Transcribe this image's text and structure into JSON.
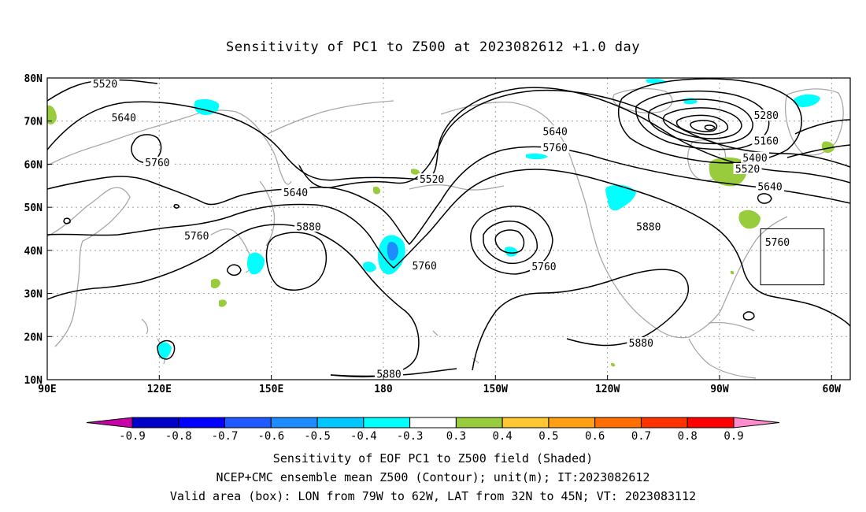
{
  "title": "Sensitivity of PC1 to Z500 at 2023082612 +1.0 day",
  "map": {
    "lat_range": [
      10,
      80
    ],
    "lon_range": [
      90,
      305
    ],
    "lat_ticks": [
      {
        "value": 80,
        "label": "80N"
      },
      {
        "value": 70,
        "label": "70N"
      },
      {
        "value": 60,
        "label": "60N"
      },
      {
        "value": 50,
        "label": "50N"
      },
      {
        "value": 40,
        "label": "40N"
      },
      {
        "value": 30,
        "label": "30N"
      },
      {
        "value": 20,
        "label": "20N"
      },
      {
        "value": 10,
        "label": "10N"
      }
    ],
    "lon_ticks": [
      {
        "value": 90,
        "label": "90E"
      },
      {
        "value": 120,
        "label": "120E"
      },
      {
        "value": 150,
        "label": "150E"
      },
      {
        "value": 180,
        "label": "180"
      },
      {
        "value": 210,
        "label": "150W"
      },
      {
        "value": 240,
        "label": "120W"
      },
      {
        "value": 270,
        "label": "90W"
      },
      {
        "value": 300,
        "label": "60W"
      }
    ],
    "valid_box": {
      "lon_min": 281,
      "lon_max": 298,
      "lat_min": 32,
      "lat_max": 45
    },
    "contour_labels": [
      {
        "text": "5520",
        "lon": 105.5,
        "lat": 78.5
      },
      {
        "text": "5640",
        "lon": 110.5,
        "lat": 70.7
      },
      {
        "text": "5760",
        "lon": 119.5,
        "lat": 60.3
      },
      {
        "text": "5640",
        "lon": 156.5,
        "lat": 53.3
      },
      {
        "text": "5760",
        "lon": 130,
        "lat": 43.3
      },
      {
        "text": "5880",
        "lon": 160,
        "lat": 45.4
      },
      {
        "text": "5520",
        "lon": 193,
        "lat": 56.4
      },
      {
        "text": "5760",
        "lon": 191,
        "lat": 36.3
      },
      {
        "text": "5640",
        "lon": 226,
        "lat": 67.5
      },
      {
        "text": "5760",
        "lon": 226,
        "lat": 63.7
      },
      {
        "text": "5760",
        "lon": 223,
        "lat": 36.1
      },
      {
        "text": "5880",
        "lon": 251,
        "lat": 45.4
      },
      {
        "text": "5880",
        "lon": 249,
        "lat": 18.4
      },
      {
        "text": "5880",
        "lon": 181.5,
        "lat": 11.2
      },
      {
        "text": "5280",
        "lon": 282.5,
        "lat": 71.2
      },
      {
        "text": "5160",
        "lon": 282.5,
        "lat": 65.3
      },
      {
        "text": "5400",
        "lon": 279.5,
        "lat": 61.4
      },
      {
        "text": "5520",
        "lon": 277.5,
        "lat": 58.8
      },
      {
        "text": "5640",
        "lon": 283.5,
        "lat": 54.7
      },
      {
        "text": "5760",
        "lon": 285.5,
        "lat": 41.8
      }
    ]
  },
  "colorbar": {
    "colors": [
      "#c800a8",
      "#0000c8",
      "#0000ff",
      "#1e5aff",
      "#1e8cff",
      "#00c8ff",
      "#00ffff",
      "#ffffff",
      "#98cc3c",
      "#ffc832",
      "#ffa014",
      "#ff6e00",
      "#ff3200",
      "#ff0000",
      "#ff8ccd"
    ],
    "labels": [
      "-0.9",
      "-0.8",
      "-0.7",
      "-0.6",
      "-0.5",
      "-0.4",
      "-0.3",
      "0.3",
      "0.4",
      "0.5",
      "0.6",
      "0.7",
      "0.8",
      "0.9"
    ]
  },
  "captions": {
    "line1": "Sensitivity of EOF PC1 to Z500 field (Shaded)",
    "line2": "NCEP+CMC ensemble mean Z500 (Contour); unit(m); IT:2023082612",
    "line3": "Valid area (box): LON from 79W to 62W, LAT from 32N to 45N; VT: 2023083112"
  }
}
